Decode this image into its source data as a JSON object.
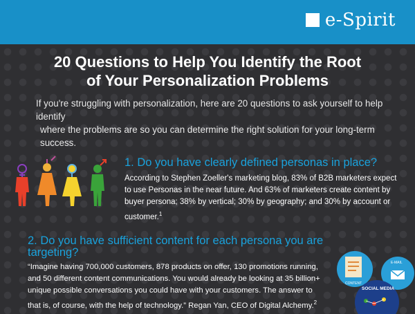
{
  "brand": {
    "name": "e-Spirit"
  },
  "title_line1": "20 Questions to Help You Identify the Root",
  "title_line2": "of Your Personalization Problems",
  "intro_line1": "If you're struggling with personalization, here are 20 questions to ask yourself to help identify",
  "intro_line2": "where the problems are so you can determine the right solution for your long-term success.",
  "q1": {
    "heading": "1. Do you have clearly defined personas in place?",
    "body": "According to Stephen Zoeller's marketing  blog, 83% of B2B marketers expect to use Personas in the near future. And 63% of marketers create content by buyer persona; 38% by vertical; 30% by geography; and 30% by account or customer.",
    "footnote": "1"
  },
  "q2": {
    "heading": "2. Do you have sufficient content for each persona you are targeting?",
    "body": "“Imagine having 700,000 customers, 878 products on offer, 130 promotions running, and 50 different content communications.  You would already be looking at 35 billion+ unique possible conversations you could have with your customers. The answer to that is, of course, with the help of technology.” Regan Yan, CEO of Digital Alchemy.",
    "footnote": "2"
  },
  "illustration": {
    "social_media_label": "SOCIAL MEDIA",
    "email_label": "E-MAIL",
    "content_label": "CONTENT"
  },
  "colors": {
    "header_blue": "#1890c8",
    "heading_blue": "#1aa2dc",
    "person_red": "#e8402a",
    "person_orange": "#f08a2a",
    "person_yellow": "#f5d22e",
    "person_green": "#3aa33a"
  }
}
